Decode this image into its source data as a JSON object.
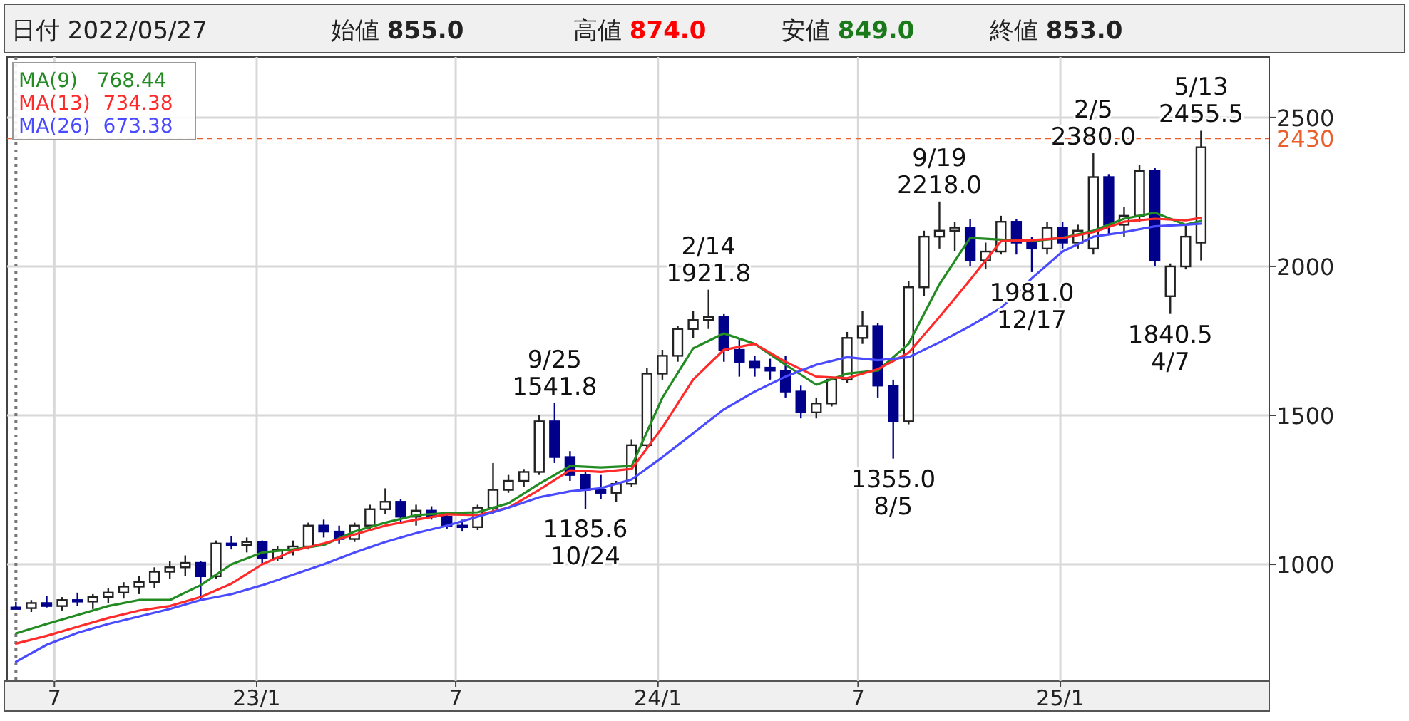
{
  "chart_data": {
    "type": "candlestick",
    "x": [
      "2022-05-27",
      "2022-06-10",
      "2022-06-24",
      "2022-07-08",
      "2022-07-22",
      "2022-08-05",
      "2022-08-19",
      "2022-09-02",
      "2022-09-16",
      "2022-09-30",
      "2022-10-14",
      "2022-10-28",
      "2022-11-11",
      "2022-11-25",
      "2022-12-09",
      "2022-12-23",
      "2023-01-06",
      "2023-01-20",
      "2023-02-03",
      "2023-02-17",
      "2023-03-03",
      "2023-03-17",
      "2023-03-31",
      "2023-04-14",
      "2023-04-28",
      "2023-05-12",
      "2023-05-26",
      "2023-06-09",
      "2023-06-23",
      "2023-07-07",
      "2023-07-21",
      "2023-08-04",
      "2023-08-18",
      "2023-09-01",
      "2023-09-15",
      "2023-09-29",
      "2023-10-13",
      "2023-10-27",
      "2023-11-10",
      "2023-11-24",
      "2023-12-08",
      "2023-12-22",
      "2024-01-05",
      "2024-01-19",
      "2024-02-02",
      "2024-02-16",
      "2024-03-01",
      "2024-03-15",
      "2024-03-29",
      "2024-04-12",
      "2024-04-26",
      "2024-05-10",
      "2024-05-24",
      "2024-06-07",
      "2024-06-21",
      "2024-07-05",
      "2024-07-19",
      "2024-08-02",
      "2024-08-16",
      "2024-08-30",
      "2024-09-13",
      "2024-09-27",
      "2024-10-11",
      "2024-10-25",
      "2024-11-08",
      "2024-11-22",
      "2024-12-06",
      "2024-12-20",
      "2025-01-03",
      "2025-01-17",
      "2025-01-31",
      "2025-02-14",
      "2025-02-28",
      "2025-03-14",
      "2025-03-28",
      "2025-04-11",
      "2025-04-25",
      "2025-05-09"
    ],
    "ohlc": [
      [
        855,
        874,
        849,
        853
      ],
      [
        853,
        880,
        840,
        870
      ],
      [
        870,
        895,
        855,
        860
      ],
      [
        860,
        890,
        845,
        880
      ],
      [
        880,
        905,
        860,
        875
      ],
      [
        875,
        900,
        850,
        890
      ],
      [
        890,
        920,
        870,
        905
      ],
      [
        905,
        940,
        885,
        925
      ],
      [
        925,
        960,
        900,
        940
      ],
      [
        940,
        990,
        920,
        975
      ],
      [
        975,
        1010,
        950,
        990
      ],
      [
        990,
        1030,
        960,
        1005
      ],
      [
        1005,
        1010,
        880,
        960
      ],
      [
        960,
        1080,
        950,
        1070
      ],
      [
        1070,
        1095,
        1050,
        1065
      ],
      [
        1065,
        1090,
        1040,
        1075
      ],
      [
        1075,
        1080,
        1000,
        1020
      ],
      [
        1020,
        1060,
        1010,
        1050
      ],
      [
        1050,
        1080,
        1030,
        1060
      ],
      [
        1060,
        1140,
        1050,
        1130
      ],
      [
        1130,
        1150,
        1090,
        1110
      ],
      [
        1110,
        1130,
        1070,
        1085
      ],
      [
        1085,
        1140,
        1075,
        1130
      ],
      [
        1130,
        1200,
        1120,
        1185
      ],
      [
        1185,
        1255,
        1170,
        1210
      ],
      [
        1210,
        1220,
        1140,
        1160
      ],
      [
        1160,
        1200,
        1130,
        1180
      ],
      [
        1180,
        1195,
        1150,
        1160
      ],
      [
        1160,
        1175,
        1120,
        1130
      ],
      [
        1130,
        1150,
        1110,
        1125
      ],
      [
        1125,
        1200,
        1115,
        1190
      ],
      [
        1190,
        1340,
        1170,
        1250
      ],
      [
        1250,
        1300,
        1240,
        1280
      ],
      [
        1280,
        1320,
        1260,
        1310
      ],
      [
        1310,
        1500,
        1300,
        1480
      ],
      [
        1480,
        1541.8,
        1340,
        1360
      ],
      [
        1360,
        1380,
        1280,
        1300
      ],
      [
        1300,
        1310,
        1185.6,
        1250
      ],
      [
        1250,
        1300,
        1220,
        1240
      ],
      [
        1240,
        1280,
        1210,
        1270
      ],
      [
        1270,
        1420,
        1260,
        1400
      ],
      [
        1400,
        1660,
        1390,
        1640
      ],
      [
        1640,
        1720,
        1620,
        1700
      ],
      [
        1700,
        1800,
        1680,
        1790
      ],
      [
        1790,
        1850,
        1760,
        1820
      ],
      [
        1820,
        1921.8,
        1790,
        1830
      ],
      [
        1830,
        1840,
        1680,
        1720
      ],
      [
        1720,
        1760,
        1630,
        1680
      ],
      [
        1680,
        1700,
        1630,
        1660
      ],
      [
        1660,
        1690,
        1620,
        1650
      ],
      [
        1650,
        1700,
        1560,
        1580
      ],
      [
        1580,
        1600,
        1490,
        1510
      ],
      [
        1510,
        1560,
        1490,
        1540
      ],
      [
        1540,
        1630,
        1530,
        1620
      ],
      [
        1620,
        1780,
        1610,
        1760
      ],
      [
        1760,
        1850,
        1740,
        1800
      ],
      [
        1800,
        1810,
        1560,
        1600
      ],
      [
        1600,
        1620,
        1355,
        1480
      ],
      [
        1480,
        1950,
        1470,
        1930
      ],
      [
        1930,
        2120,
        1900,
        2100
      ],
      [
        2100,
        2218,
        2060,
        2120
      ],
      [
        2120,
        2150,
        2050,
        2130
      ],
      [
        2130,
        2160,
        2000,
        2020
      ],
      [
        2020,
        2080,
        1990,
        2050
      ],
      [
        2050,
        2170,
        2040,
        2150
      ],
      [
        2150,
        2160,
        2040,
        2080
      ],
      [
        2080,
        2100,
        1981,
        2060
      ],
      [
        2060,
        2150,
        2040,
        2130
      ],
      [
        2130,
        2150,
        2060,
        2080
      ],
      [
        2080,
        2140,
        2060,
        2120
      ],
      [
        2060,
        2380,
        2040,
        2300
      ],
      [
        2300,
        2310,
        2110,
        2140
      ],
      [
        2140,
        2200,
        2100,
        2170
      ],
      [
        2170,
        2340,
        2150,
        2320
      ],
      [
        2320,
        2330,
        2000,
        2020
      ],
      [
        1900,
        2010,
        1840.5,
        2000
      ],
      [
        2000,
        2140,
        1990,
        2100
      ],
      [
        2080,
        2455.5,
        2020,
        2400
      ]
    ],
    "colors": [
      "#00008b",
      "#ffffff",
      "#00008b",
      "#ffffff",
      "#00008b",
      "#ffffff",
      "#ffffff",
      "#ffffff",
      "#ffffff",
      "#ffffff",
      "#ffffff",
      "#ffffff",
      "#00008b",
      "#ffffff",
      "#00008b",
      "#ffffff",
      "#00008b",
      "#ffffff",
      "#ffffff",
      "#ffffff",
      "#00008b",
      "#00008b",
      "#ffffff",
      "#ffffff",
      "#ffffff",
      "#00008b",
      "#ffffff",
      "#00008b",
      "#00008b",
      "#00008b",
      "#ffffff",
      "#ffffff",
      "#ffffff",
      "#ffffff",
      "#ffffff",
      "#00008b",
      "#00008b",
      "#00008b",
      "#00008b",
      "#ffffff",
      "#ffffff",
      "#ffffff",
      "#ffffff",
      "#ffffff",
      "#ffffff",
      "#ffffff",
      "#00008b",
      "#00008b",
      "#00008b",
      "#00008b",
      "#00008b",
      "#00008b",
      "#ffffff",
      "#ffffff",
      "#ffffff",
      "#ffffff",
      "#00008b",
      "#00008b",
      "#ffffff",
      "#ffffff",
      "#ffffff",
      "#ffffff",
      "#00008b",
      "#ffffff",
      "#ffffff",
      "#00008b",
      "#00008b",
      "#ffffff",
      "#00008b",
      "#ffffff",
      "#ffffff",
      "#00008b",
      "#ffffff",
      "#ffffff",
      "#00008b",
      "#ffffff",
      "#ffffff",
      "#ffffff"
    ],
    "series": [
      {
        "name": "MA(9)   768.44",
        "type": "line",
        "color": "#228b22",
        "x": [
          "2022-05-27",
          "2022-06-24",
          "2022-07-22",
          "2022-08-19",
          "2022-09-16",
          "2022-10-14",
          "2022-11-11",
          "2022-12-09",
          "2023-01-06",
          "2023-02-03",
          "2023-03-03",
          "2023-03-31",
          "2023-04-28",
          "2023-05-26",
          "2023-06-23",
          "2023-07-21",
          "2023-08-18",
          "2023-09-15",
          "2023-10-13",
          "2023-11-10",
          "2023-12-08",
          "2024-01-05",
          "2024-02-02",
          "2024-03-01",
          "2024-03-29",
          "2024-04-26",
          "2024-05-24",
          "2024-06-21",
          "2024-07-19",
          "2024-08-16",
          "2024-09-13",
          "2024-10-11",
          "2024-11-08",
          "2024-12-06",
          "2025-01-03",
          "2025-01-31",
          "2025-02-28",
          "2025-03-28",
          "2025-04-25",
          "2025-05-09"
        ],
        "values": [
          768,
          800,
          830,
          860,
          880,
          880,
          930,
          1000,
          1040,
          1050,
          1065,
          1110,
          1140,
          1165,
          1172,
          1175,
          1205,
          1270,
          1330,
          1325,
          1330,
          1560,
          1725,
          1775,
          1740,
          1670,
          1603,
          1640,
          1650,
          1740,
          1940,
          2096,
          2090,
          2085,
          2096,
          2120,
          2160,
          2180,
          2140,
          2153
        ]
      },
      {
        "name": "MA(13)  734.38",
        "type": "line",
        "color": "#ff2a2a",
        "x": [
          "2022-05-27",
          "2022-06-24",
          "2022-07-22",
          "2022-08-19",
          "2022-09-16",
          "2022-10-14",
          "2022-11-11",
          "2022-12-09",
          "2023-01-06",
          "2023-02-03",
          "2023-03-03",
          "2023-03-31",
          "2023-04-28",
          "2023-05-26",
          "2023-06-23",
          "2023-07-21",
          "2023-08-18",
          "2023-09-15",
          "2023-10-13",
          "2023-11-10",
          "2023-12-08",
          "2024-01-05",
          "2024-02-02",
          "2024-03-01",
          "2024-03-29",
          "2024-04-26",
          "2024-05-24",
          "2024-06-21",
          "2024-07-19",
          "2024-08-16",
          "2024-09-13",
          "2024-10-11",
          "2024-11-08",
          "2024-12-06",
          "2025-01-03",
          "2025-01-31",
          "2025-02-28",
          "2025-03-28",
          "2025-04-25",
          "2025-05-09"
        ],
        "values": [
          734,
          760,
          790,
          820,
          845,
          860,
          890,
          935,
          1000,
          1045,
          1070,
          1100,
          1130,
          1150,
          1168,
          1165,
          1190,
          1250,
          1316,
          1310,
          1320,
          1460,
          1620,
          1720,
          1740,
          1680,
          1630,
          1625,
          1655,
          1710,
          1830,
          1955,
          2085,
          2088,
          2095,
          2115,
          2150,
          2160,
          2155,
          2163
        ]
      },
      {
        "name": "MA(26)  673.38",
        "type": "line",
        "color": "#4a4aff",
        "x": [
          "2022-05-27",
          "2022-06-24",
          "2022-07-22",
          "2022-08-19",
          "2022-09-16",
          "2022-10-14",
          "2022-11-11",
          "2022-12-09",
          "2023-01-06",
          "2023-02-03",
          "2023-03-03",
          "2023-03-31",
          "2023-04-28",
          "2023-05-26",
          "2023-06-23",
          "2023-07-21",
          "2023-08-18",
          "2023-09-15",
          "2023-10-13",
          "2023-11-10",
          "2023-12-08",
          "2024-01-05",
          "2024-02-02",
          "2024-03-01",
          "2024-03-29",
          "2024-04-26",
          "2024-05-24",
          "2024-06-21",
          "2024-07-19",
          "2024-08-16",
          "2024-09-13",
          "2024-10-11",
          "2024-11-08",
          "2024-12-06",
          "2025-01-03",
          "2025-01-31",
          "2025-02-28",
          "2025-03-28",
          "2025-04-25",
          "2025-05-09"
        ],
        "values": [
          673,
          730,
          770,
          800,
          825,
          850,
          880,
          900,
          930,
          965,
          1000,
          1040,
          1075,
          1105,
          1130,
          1160,
          1190,
          1225,
          1245,
          1255,
          1285,
          1360,
          1440,
          1520,
          1580,
          1630,
          1670,
          1695,
          1685,
          1695,
          1745,
          1800,
          1860,
          1960,
          2050,
          2100,
          2115,
          2135,
          2140,
          2144
        ]
      }
    ],
    "xlim": [
      "2022-05-19",
      "2025-07-10"
    ],
    "xticks": [
      {
        "value": "2022-07-01",
        "label": "7"
      },
      {
        "value": "2023-01-01",
        "label": "23/1"
      },
      {
        "value": "2023-07-01",
        "label": "7"
      },
      {
        "value": "2024-01-01",
        "label": "24/1"
      },
      {
        "value": "2024-07-01",
        "label": "7"
      },
      {
        "value": "2025-01-01",
        "label": "25/1"
      }
    ],
    "ylim": [
      608,
      2703
    ],
    "yticks": [
      1000,
      1500,
      2000,
      2500
    ],
    "grid": true,
    "legend": "top left",
    "ref_lines": [
      {
        "axis": "y",
        "value": 2430,
        "label": "2430",
        "color": "#e8602c",
        "line_style": "dashed"
      },
      {
        "axis": "x",
        "value": "2022-05-27",
        "label": null,
        "line_style": "dotted"
      }
    ],
    "annotations": [
      "日付 2022/05/27",
      "始値 855.0",
      "高値 874.0",
      "安値 849.0",
      "終値 853.0",
      {
        "text": "9/25\n1541.8",
        "x": "2023-09-29",
        "y": 1541.8
      },
      {
        "text": "1185.6\n10/24",
        "x": "2023-10-27",
        "y": 1185.6
      },
      {
        "text": "2/14\n1921.8",
        "x": "2024-02-16",
        "y": 1921.8
      },
      {
        "text": "1355.0\n8/5",
        "x": "2024-08-02",
        "y": 1355.0
      },
      {
        "text": "9/19\n2218.0",
        "x": "2024-09-13",
        "y": 2218.0
      },
      {
        "text": "1981.0\n12/17",
        "x": "2024-12-06",
        "y": 1981.0
      },
      {
        "text": "2/5\n2380.0",
        "x": "2025-01-31",
        "y": 2380.0
      },
      {
        "text": "1840.5\n4/7",
        "x": "2025-04-11",
        "y": 1840.5
      },
      {
        "text": "5/13\n2455.5",
        "x": "2025-05-09",
        "y": 2455.5
      }
    ]
  }
}
